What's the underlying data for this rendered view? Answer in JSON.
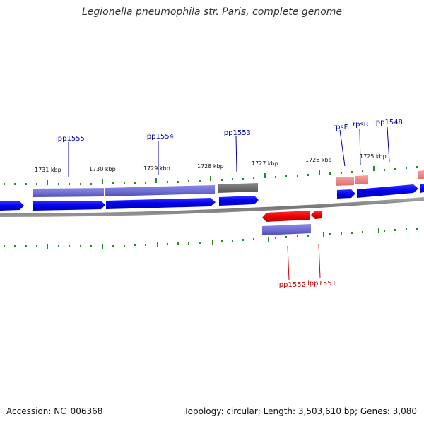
{
  "title": "Legionella pneumophila str. Paris, complete genome",
  "accession_label": "Accession: NC_006368",
  "info_text": "Topology: circular; Length: 3,503,610 bp; Genes: 3,080",
  "colors": {
    "forward_cds": "#0000ee",
    "reverse_cds": "#ee0000",
    "forward_shadow": "#7070d8",
    "reverse_shadow": "#f09090",
    "gray_feature": "#666666",
    "backbone": "#888888",
    "tick": "#228b22",
    "label_forward": "#0000aa",
    "label_reverse": "#cc0000"
  },
  "scale_labels": [
    "1731 kbp",
    "1730 kbp",
    "1729 kbp",
    "1728 kbp",
    "1727 kbp",
    "1726 kbp",
    "1725 kbp"
  ],
  "gene_labels": {
    "forward": [
      "lpp1555",
      "lpp1554",
      "lpp1553",
      "rpsF",
      "rpsR",
      "lpp1548"
    ],
    "reverse": [
      "lpp1552",
      "lpp1551"
    ]
  }
}
